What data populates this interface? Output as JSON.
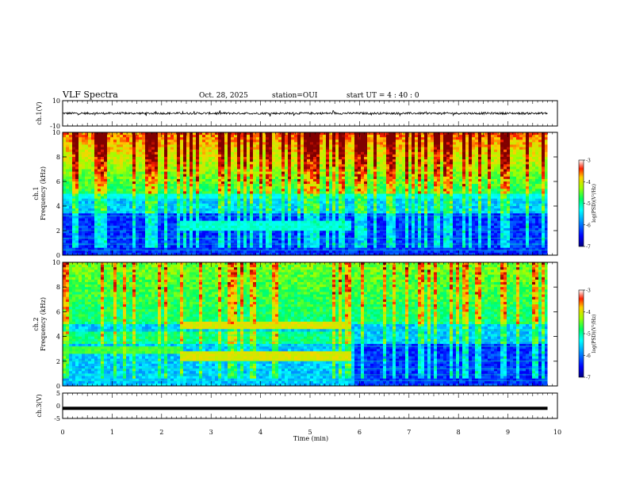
{
  "header": {
    "title": "VLF Spectra",
    "date": "Oct. 28, 2025",
    "station": "station=OUI",
    "start_ut": "start  UT =   4 : 40 : 0"
  },
  "colors": {
    "trace": "#000000",
    "colormap": [
      "#00007f",
      "#0000ff",
      "#0080ff",
      "#00ffff",
      "#00ff80",
      "#80ff00",
      "#ffff00",
      "#ff8000",
      "#ff0000",
      "#800000"
    ]
  },
  "chart_data": [
    {
      "type": "line",
      "panel": "ch1-waveform",
      "ylabel": "ch.1(V)",
      "ylim": [
        -10,
        10
      ],
      "yticks": [
        "10",
        "-10"
      ],
      "xlim": [
        0,
        10
      ],
      "baseline": 0,
      "typical_range": [
        -1.5,
        1.5
      ]
    },
    {
      "type": "heatmap",
      "panel": "ch1-spectrogram",
      "ylabel": "ch.1\nFrequency (kHz)",
      "ylim": [
        0,
        10
      ],
      "yticks": [
        "0",
        "2",
        "4",
        "6",
        "8",
        "10"
      ],
      "xlim": [
        0,
        10
      ],
      "colorbar": {
        "label": "log(PSD)(V²/Hz)",
        "range": [
          -7,
          -3
        ],
        "ticks": [
          "-3",
          "-4",
          "-5",
          "-6",
          "-7"
        ]
      },
      "features": [
        {
          "description": "band",
          "t_start": 2.4,
          "t_end": 5.85,
          "freq_khz": 2.4,
          "level": -5.2
        },
        {
          "description": "band",
          "t_start": 0,
          "t_end": 9.8,
          "freq_khz": 4.9,
          "level": -5.3
        }
      ]
    },
    {
      "type": "heatmap",
      "panel": "ch2-spectrogram",
      "ylabel": "ch.2\nFrequency (kHz)",
      "ylim": [
        0,
        10
      ],
      "yticks": [
        "0",
        "2",
        "4",
        "6",
        "8",
        "10"
      ],
      "xlim": [
        0,
        10
      ],
      "colorbar": {
        "label": "log(PSD)(V²/Hz)",
        "range": [
          -7,
          -3
        ],
        "ticks": [
          "-3",
          "-4",
          "-5",
          "-6",
          "-7"
        ]
      },
      "features": [
        {
          "description": "band",
          "t_start": 2.4,
          "t_end": 5.85,
          "freq_khz": 4.9,
          "level": -4.0
        },
        {
          "description": "band",
          "t_start": 2.4,
          "t_end": 5.85,
          "freq_khz": 2.4,
          "level": -4.0
        },
        {
          "description": "band",
          "t_start": 0,
          "t_end": 2.4,
          "freq_khz": 2.9,
          "level": -4.6
        }
      ]
    },
    {
      "type": "line",
      "panel": "ch3-waveform",
      "ylabel": "ch.3(V)",
      "ylim": [
        -5,
        5
      ],
      "yticks": [
        "5",
        "0",
        "-5"
      ],
      "xlim": [
        0,
        10
      ],
      "constant_value": -1.0
    }
  ],
  "xaxis": {
    "label": "Time  (min)",
    "ticks": [
      "0",
      "1",
      "2",
      "3",
      "4",
      "5",
      "6",
      "7",
      "8",
      "9",
      "10"
    ]
  }
}
